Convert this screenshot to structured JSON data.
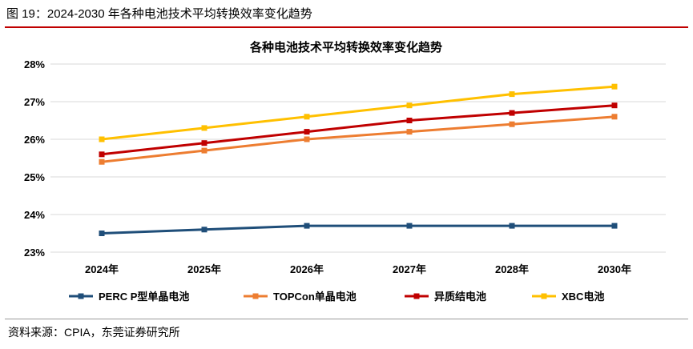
{
  "figure": {
    "caption": "图 19：2024-2030 年各种电池技术平均转换效率变化趋势",
    "caption_rule_color": "#C00000"
  },
  "chart_data": {
    "type": "line",
    "title": "各种电池技术平均转换效率变化趋势",
    "categories": [
      "2024年",
      "2025年",
      "2026年",
      "2027年",
      "2028年",
      "2030年"
    ],
    "y_ticks": [
      "23%",
      "24%",
      "25%",
      "26%",
      "27%",
      "28%"
    ],
    "ylim": [
      23,
      28
    ],
    "unit": "%",
    "grid": "horizontal",
    "legend": "bottom",
    "markers": "square",
    "series": [
      {
        "name": "PERC P型单晶电池",
        "color": "#1F4E79",
        "values": [
          23.5,
          23.6,
          23.7,
          23.7,
          23.7,
          23.7
        ]
      },
      {
        "name": "TOPCon单晶电池",
        "color": "#ED7D31",
        "values": [
          25.4,
          25.7,
          26.0,
          26.2,
          26.4,
          26.6
        ]
      },
      {
        "name": "异质结电池",
        "color": "#C00000",
        "values": [
          25.6,
          25.9,
          26.2,
          26.5,
          26.7,
          26.9
        ]
      },
      {
        "name": "XBC电池",
        "color": "#FFC000",
        "values": [
          26.0,
          26.3,
          26.6,
          26.9,
          27.2,
          27.4
        ]
      }
    ]
  },
  "source": "资料来源：CPIA，东莞证券研究所"
}
